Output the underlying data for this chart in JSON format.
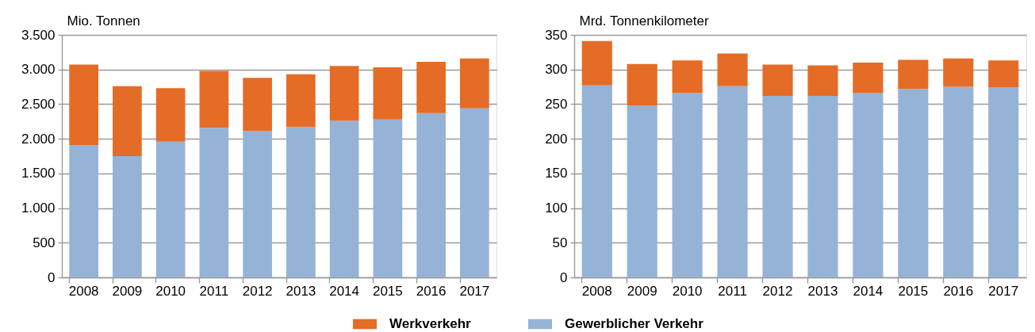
{
  "chart_data": [
    {
      "type": "bar",
      "stacked": true,
      "ylabel": "Mio. Tonnen",
      "categories": [
        "2008",
        "2009",
        "2010",
        "2011",
        "2012",
        "2013",
        "2014",
        "2015",
        "2016",
        "2017"
      ],
      "series": [
        {
          "name": "Gewerblicher Verkehr",
          "color": "#95b3d7",
          "values": [
            1910,
            1750,
            1960,
            2160,
            2110,
            2170,
            2260,
            2280,
            2370,
            2440
          ]
        },
        {
          "name": "Werkverkehr",
          "color": "#e46c26",
          "values": [
            1160,
            1010,
            770,
            820,
            770,
            760,
            790,
            750,
            740,
            720
          ]
        }
      ],
      "ylim": [
        0,
        3500
      ],
      "yticks": [
        0,
        500,
        {
          "value": 1000,
          "label": "1.000"
        },
        {
          "value": 1500,
          "label": "1.500"
        },
        {
          "value": 2000,
          "label": "2.000"
        },
        {
          "value": 2500,
          "label": "2.500"
        },
        {
          "value": 3000,
          "label": "3.000"
        },
        {
          "value": 3500,
          "label": "3.500"
        }
      ],
      "grid": "y",
      "legend": "bottom"
    },
    {
      "type": "bar",
      "stacked": true,
      "ylabel": "Mrd. Tonnenkilometer",
      "categories": [
        "2008",
        "2009",
        "2010",
        "2011",
        "2012",
        "2013",
        "2014",
        "2015",
        "2016",
        "2017"
      ],
      "series": [
        {
          "name": "Gewerblicher Verkehr",
          "color": "#95b3d7",
          "values": [
            277,
            248,
            266,
            276,
            262,
            262,
            266,
            272,
            275,
            274
          ]
        },
        {
          "name": "Werkverkehr",
          "color": "#e46c26",
          "values": [
            64,
            60,
            47,
            47,
            45,
            44,
            44,
            42,
            41,
            39
          ]
        }
      ],
      "ylim": [
        0,
        350
      ],
      "yticks": [
        0,
        50,
        100,
        150,
        200,
        250,
        300,
        350
      ],
      "grid": "y",
      "legend": "bottom"
    }
  ]
}
